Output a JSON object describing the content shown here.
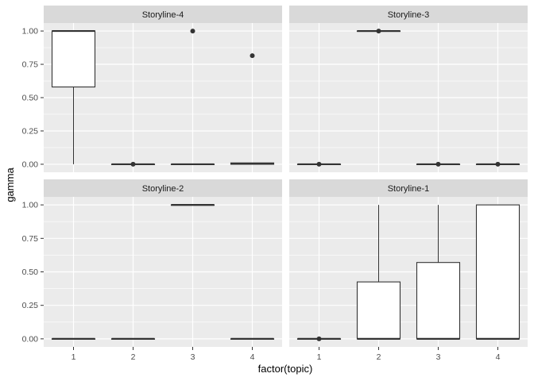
{
  "chart_data": {
    "type": "boxplot",
    "xlabel": "factor(topic)",
    "ylabel": "gamma",
    "ylim": [
      -0.06,
      1.06
    ],
    "categories": [
      "1",
      "2",
      "3",
      "4"
    ],
    "y_ticks": [
      {
        "value": 0.0,
        "label": "0.00"
      },
      {
        "value": 0.25,
        "label": "0.25"
      },
      {
        "value": 0.5,
        "label": "0.50"
      },
      {
        "value": 0.75,
        "label": "0.75"
      },
      {
        "value": 1.0,
        "label": "1.00"
      }
    ],
    "grid": true,
    "colors": {
      "panel_bg": "#ebebeb",
      "strip_bg": "#d9d9d9",
      "grid_major": "#ffffff",
      "box_fill": "#ffffff",
      "box_line": "#333333"
    },
    "facets": [
      {
        "title": "Storyline-4",
        "boxes": [
          {
            "x": "1",
            "min": 0.0,
            "q1": 0.58,
            "median": 1.0,
            "q3": 1.0,
            "max": 1.0,
            "outliers": []
          },
          {
            "x": "2",
            "min": 0.0,
            "q1": 0.0,
            "median": 0.0,
            "q3": 0.0,
            "max": 0.0,
            "outliers": [
              0.0
            ]
          },
          {
            "x": "3",
            "min": 0.0,
            "q1": 0.0,
            "median": 0.0,
            "q3": 0.0,
            "max": 0.0,
            "outliers": [
              1.0
            ]
          },
          {
            "x": "4",
            "min": 0.0,
            "q1": 0.0,
            "median": 0.005,
            "q3": 0.01,
            "max": 0.01,
            "outliers": [
              0.815
            ]
          }
        ]
      },
      {
        "title": "Storyline-3",
        "boxes": [
          {
            "x": "1",
            "min": 0.0,
            "q1": 0.0,
            "median": 0.0,
            "q3": 0.0,
            "max": 0.0,
            "outliers": [
              0.0
            ]
          },
          {
            "x": "2",
            "min": 1.0,
            "q1": 1.0,
            "median": 1.0,
            "q3": 1.0,
            "max": 1.0,
            "outliers": [
              1.0
            ]
          },
          {
            "x": "3",
            "min": 0.0,
            "q1": 0.0,
            "median": 0.0,
            "q3": 0.0,
            "max": 0.0,
            "outliers": [
              0.0
            ]
          },
          {
            "x": "4",
            "min": 0.0,
            "q1": 0.0,
            "median": 0.0,
            "q3": 0.0,
            "max": 0.0,
            "outliers": [
              0.0
            ]
          }
        ]
      },
      {
        "title": "Storyline-2",
        "boxes": [
          {
            "x": "1",
            "min": 0.0,
            "q1": 0.0,
            "median": 0.0,
            "q3": 0.0,
            "max": 0.0,
            "outliers": []
          },
          {
            "x": "2",
            "min": 0.0,
            "q1": 0.0,
            "median": 0.0,
            "q3": 0.0,
            "max": 0.0,
            "outliers": []
          },
          {
            "x": "3",
            "min": 1.0,
            "q1": 1.0,
            "median": 1.0,
            "q3": 1.0,
            "max": 1.0,
            "outliers": []
          },
          {
            "x": "4",
            "min": 0.0,
            "q1": 0.0,
            "median": 0.0,
            "q3": 0.0,
            "max": 0.0,
            "outliers": []
          }
        ]
      },
      {
        "title": "Storyline-1",
        "boxes": [
          {
            "x": "1",
            "min": 0.0,
            "q1": 0.0,
            "median": 0.0,
            "q3": 0.0,
            "max": 0.0,
            "outliers": [
              0.0
            ]
          },
          {
            "x": "2",
            "min": 0.0,
            "q1": 0.0,
            "median": 0.0,
            "q3": 0.425,
            "max": 1.0,
            "outliers": []
          },
          {
            "x": "3",
            "min": 0.0,
            "q1": 0.0,
            "median": 0.0,
            "q3": 0.57,
            "max": 1.0,
            "outliers": []
          },
          {
            "x": "4",
            "min": 0.0,
            "q1": 0.0,
            "median": 0.0,
            "q3": 1.0,
            "max": 1.0,
            "outliers": []
          }
        ]
      }
    ]
  }
}
